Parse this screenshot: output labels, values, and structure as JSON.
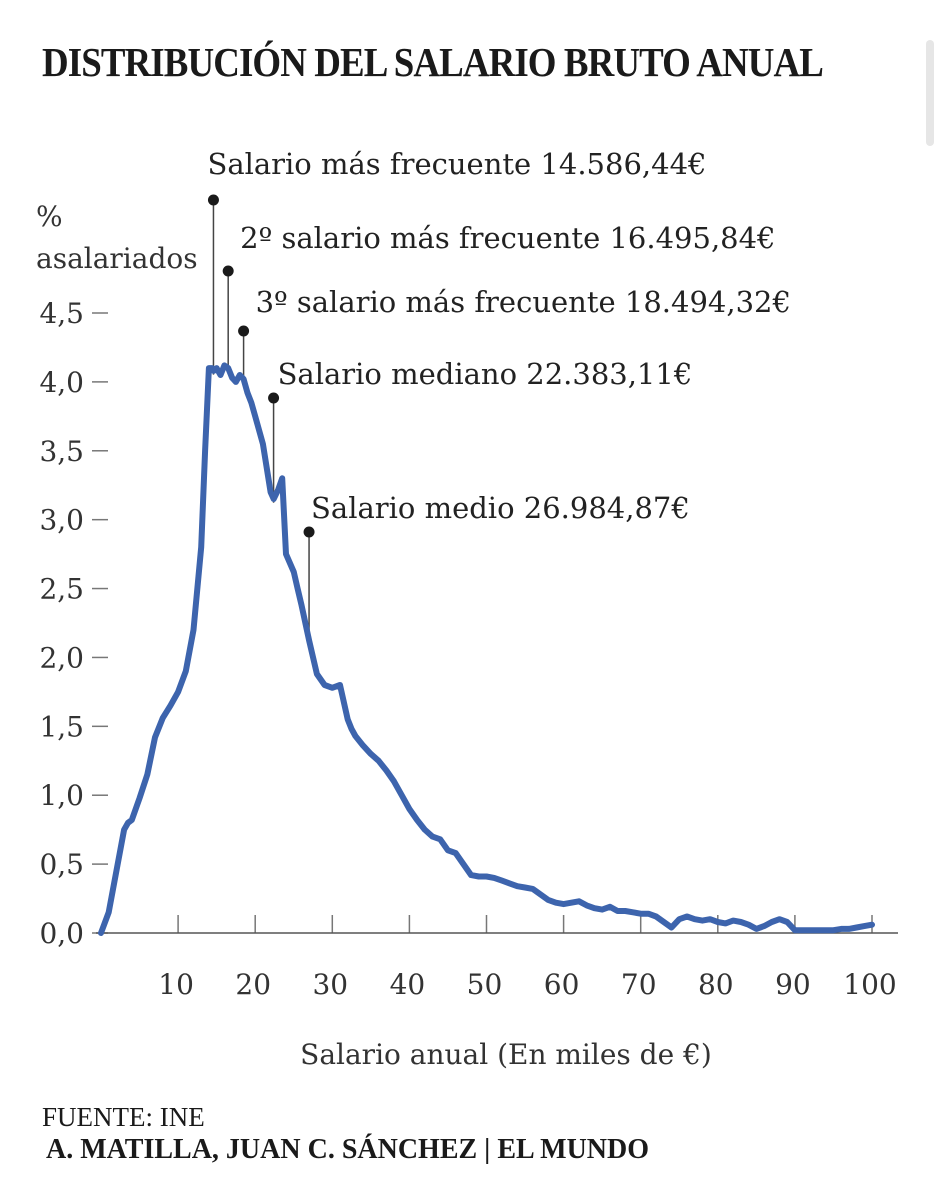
{
  "title": "DISTRIBUCIÓN DEL SALARIO BRUTO ANUAL",
  "source": "FUENTE: INE",
  "credit": "A. MATILLA, JUAN C. SÁNCHEZ | EL MUNDO",
  "chart_data": {
    "type": "line",
    "title": "DISTRIBUCIÓN DEL SALARIO BRUTO ANUAL",
    "xlabel": "Salario anual (En miles de €)",
    "ylabel": [
      "%",
      "asalariados"
    ],
    "xlim": [
      0,
      100
    ],
    "ylim": [
      0,
      4.5
    ],
    "xticks": [
      10,
      20,
      30,
      40,
      50,
      60,
      70,
      80,
      90,
      100
    ],
    "xtick_labels": [
      "10",
      "20",
      "30",
      "40",
      "50",
      "60",
      "70",
      "80",
      "90",
      "100"
    ],
    "yticks": [
      0,
      0.5,
      1.0,
      1.5,
      2.0,
      2.5,
      3.0,
      3.5,
      4.0,
      4.5
    ],
    "ytick_labels": [
      "0,0",
      "0,5",
      "1,0",
      "1,5",
      "2,0",
      "2,5",
      "3,0",
      "3,5",
      "4,0",
      "4,5"
    ],
    "grid": false,
    "line_color": "#3d64ad",
    "series": [
      {
        "x": [
          0,
          1,
          2,
          3,
          3.5,
          4,
          5,
          6,
          7,
          8,
          9,
          10,
          11,
          12,
          13,
          13.5,
          14,
          14.4,
          14.6,
          15,
          15.5,
          16,
          16.5,
          17,
          17.5,
          18,
          18.5,
          19,
          19.5,
          20,
          21,
          22,
          22.4,
          23,
          23.5,
          24,
          25,
          25.5,
          26,
          27,
          28,
          29,
          30,
          31,
          32,
          32.5,
          33,
          34,
          35,
          36,
          37,
          38,
          39,
          40,
          41,
          42,
          43,
          44,
          45,
          46,
          47,
          48,
          49,
          50,
          51,
          52,
          53,
          54,
          55,
          56,
          57,
          58,
          59,
          60,
          61,
          62,
          63,
          64,
          65,
          66,
          67,
          68,
          69,
          70,
          71,
          72,
          73,
          74,
          75,
          76,
          77,
          78,
          79,
          80,
          81,
          82,
          83,
          84,
          85,
          86,
          87,
          88,
          89,
          90,
          91,
          92,
          93,
          94,
          95,
          96,
          97,
          98,
          99,
          100
        ],
        "y": [
          0.0,
          0.15,
          0.45,
          0.75,
          0.8,
          0.82,
          0.98,
          1.15,
          1.42,
          1.56,
          1.65,
          1.75,
          1.9,
          2.2,
          2.8,
          3.5,
          4.1,
          4.1,
          4.08,
          4.1,
          4.05,
          4.12,
          4.1,
          4.03,
          4.0,
          4.05,
          4.02,
          3.92,
          3.85,
          3.75,
          3.55,
          3.2,
          3.15,
          3.22,
          3.3,
          2.75,
          2.62,
          2.5,
          2.38,
          2.12,
          1.88,
          1.8,
          1.78,
          1.8,
          1.55,
          1.48,
          1.43,
          1.36,
          1.3,
          1.25,
          1.18,
          1.1,
          1.0,
          0.9,
          0.82,
          0.75,
          0.7,
          0.68,
          0.6,
          0.58,
          0.5,
          0.42,
          0.41,
          0.41,
          0.4,
          0.38,
          0.36,
          0.34,
          0.33,
          0.32,
          0.28,
          0.24,
          0.22,
          0.21,
          0.22,
          0.23,
          0.2,
          0.18,
          0.17,
          0.19,
          0.16,
          0.16,
          0.15,
          0.14,
          0.14,
          0.12,
          0.08,
          0.04,
          0.1,
          0.12,
          0.1,
          0.09,
          0.1,
          0.08,
          0.07,
          0.09,
          0.08,
          0.06,
          0.03,
          0.05,
          0.08,
          0.1,
          0.08,
          0.02,
          0.02,
          0.02,
          0.02,
          0.02,
          0.02,
          0.03,
          0.03,
          0.04,
          0.05,
          0.06
        ]
      }
    ],
    "annotations": [
      {
        "label": "Salario más frecuente 14.586,44€",
        "x": 14.586
      },
      {
        "label": "2º salario más frecuente 16.495,84€",
        "x": 16.496
      },
      {
        "label": "3º salario más frecuente 18.494,32€",
        "x": 18.494
      },
      {
        "label": "Salario mediano 22.383,11€",
        "x": 22.383
      },
      {
        "label": "Salario medio 26.984,87€",
        "x": 26.985
      }
    ]
  }
}
